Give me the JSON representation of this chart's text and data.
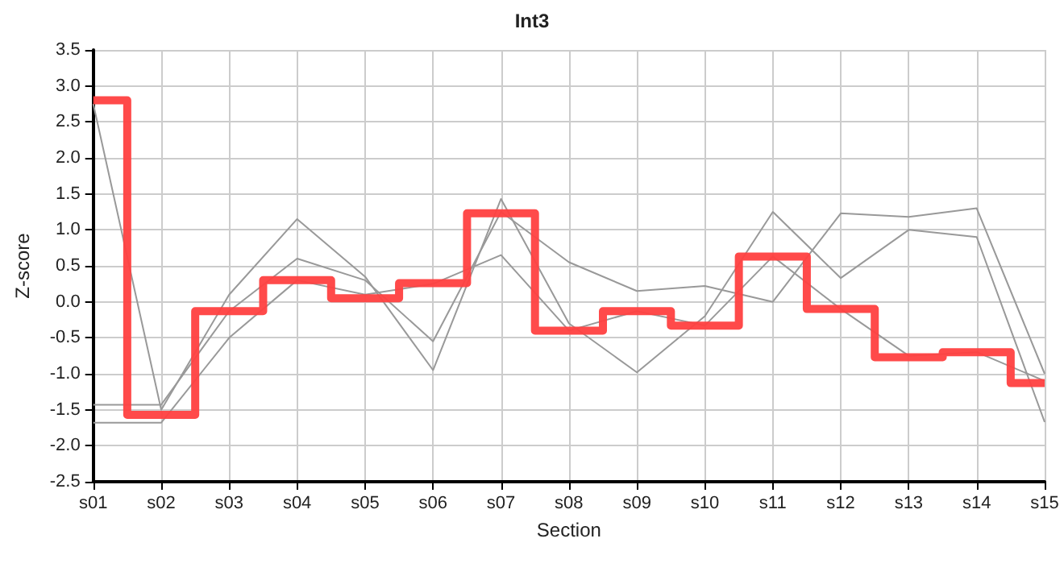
{
  "chart_data": {
    "type": "line",
    "title": "Int3",
    "xlabel": "Section",
    "ylabel": "Z-score",
    "categories": [
      "s01",
      "s02",
      "s03",
      "s04",
      "s05",
      "s06",
      "s07",
      "s08",
      "s09",
      "s10",
      "s11",
      "s12",
      "s13",
      "s14",
      "s15"
    ],
    "series": [
      {
        "color": "#999999",
        "values": [
          2.75,
          -1.5,
          0.1,
          1.15,
          0.35,
          -0.95,
          1.43,
          -0.3,
          -0.98,
          -0.2,
          1.25,
          0.33,
          1.0,
          0.9,
          -1.67
        ]
      },
      {
        "color": "#999999",
        "values": [
          -1.43,
          -1.43,
          -0.13,
          0.6,
          0.3,
          -0.55,
          1.25,
          0.55,
          0.15,
          0.22,
          0.0,
          1.23,
          1.18,
          1.3,
          -1.0
        ]
      },
      {
        "color": "#999999",
        "values": [
          -1.68,
          -1.68,
          -0.5,
          0.3,
          0.1,
          0.25,
          0.65,
          -0.4,
          -0.13,
          -0.33,
          0.63,
          -0.1,
          -0.75,
          -0.7,
          -1.1
        ]
      },
      {
        "type": "step",
        "color": "#ff4040",
        "values": [
          2.8,
          -1.57,
          -0.13,
          0.3,
          0.05,
          0.26,
          1.23,
          -0.4,
          -0.13,
          -0.33,
          0.63,
          -0.1,
          -0.77,
          -0.7,
          -1.13
        ]
      }
    ],
    "ylim": [
      -2.5,
      3.5
    ],
    "yticks": [
      {
        "value": -2.5,
        "label": "-2.5"
      },
      {
        "value": -2,
        "label": "-2.0"
      },
      {
        "value": -1.5,
        "label": "-1.5"
      },
      {
        "value": -1,
        "label": "-1.0"
      },
      {
        "value": -0.5,
        "label": "-0.5"
      },
      {
        "value": 0,
        "label": "0.0"
      },
      {
        "value": 0.5,
        "label": "0.5"
      },
      {
        "value": 1,
        "label": "1.0"
      },
      {
        "value": 1.5,
        "label": "1.5"
      },
      {
        "value": 2,
        "label": "2.0"
      },
      {
        "value": 2.5,
        "label": "2.5"
      },
      {
        "value": 3,
        "label": "3.0"
      },
      {
        "value": 3.5,
        "label": "3.5"
      }
    ],
    "grid": true,
    "marker": "none",
    "line_style": "solid"
  }
}
